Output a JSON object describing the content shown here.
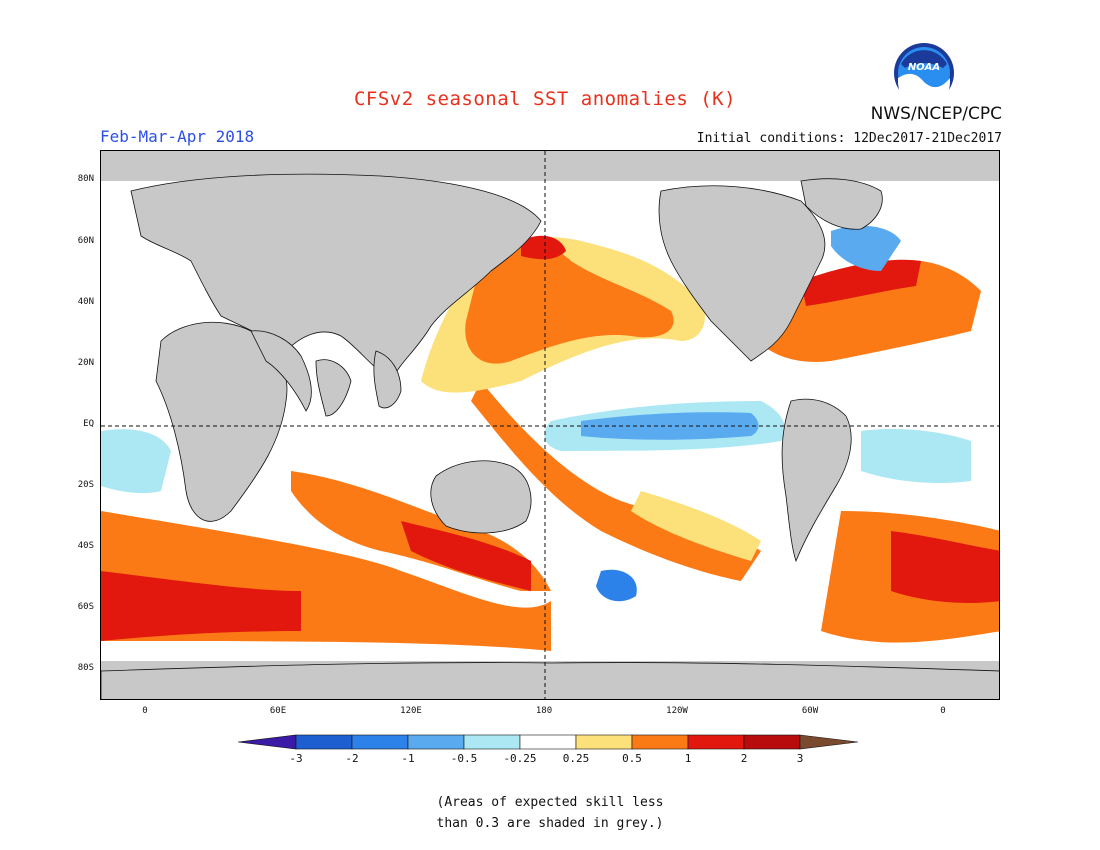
{
  "header": {
    "title": "CFSv2 seasonal SST anomalies (K)",
    "period": "Feb-Mar-Apr 2018",
    "initial_conditions": "Initial conditions: 12Dec2017-21Dec2017",
    "agency": "NWS/NCEP/CPC",
    "logo_text": "NOAA"
  },
  "map": {
    "lat_labels": [
      "80N",
      "60N",
      "40N",
      "20N",
      "EQ",
      "20S",
      "40S",
      "60S",
      "80S"
    ],
    "lon_labels": [
      "0",
      "60E",
      "120E",
      "180",
      "120W",
      "60W",
      "0"
    ],
    "lat_range": [
      -90,
      90
    ],
    "lon_range": [
      -20,
      380
    ],
    "land_color": "#c8c8c8"
  },
  "colorbar": {
    "ticks": [
      "-3",
      "-2",
      "-1",
      "-0.5",
      "-0.25",
      "0.25",
      "0.5",
      "1",
      "2",
      "3"
    ],
    "colors": [
      "#3b1aa8",
      "#1d5fd0",
      "#2c82e8",
      "#5aaaf0",
      "#abe8f4",
      "#ffffff",
      "#fce07a",
      "#fb7a16",
      "#e2180e",
      "#b80c0c",
      "#7a4a2e"
    ]
  },
  "note": {
    "line1": "(Areas of expected skill less",
    "line2": "than 0.3 are shaded in grey.)"
  }
}
